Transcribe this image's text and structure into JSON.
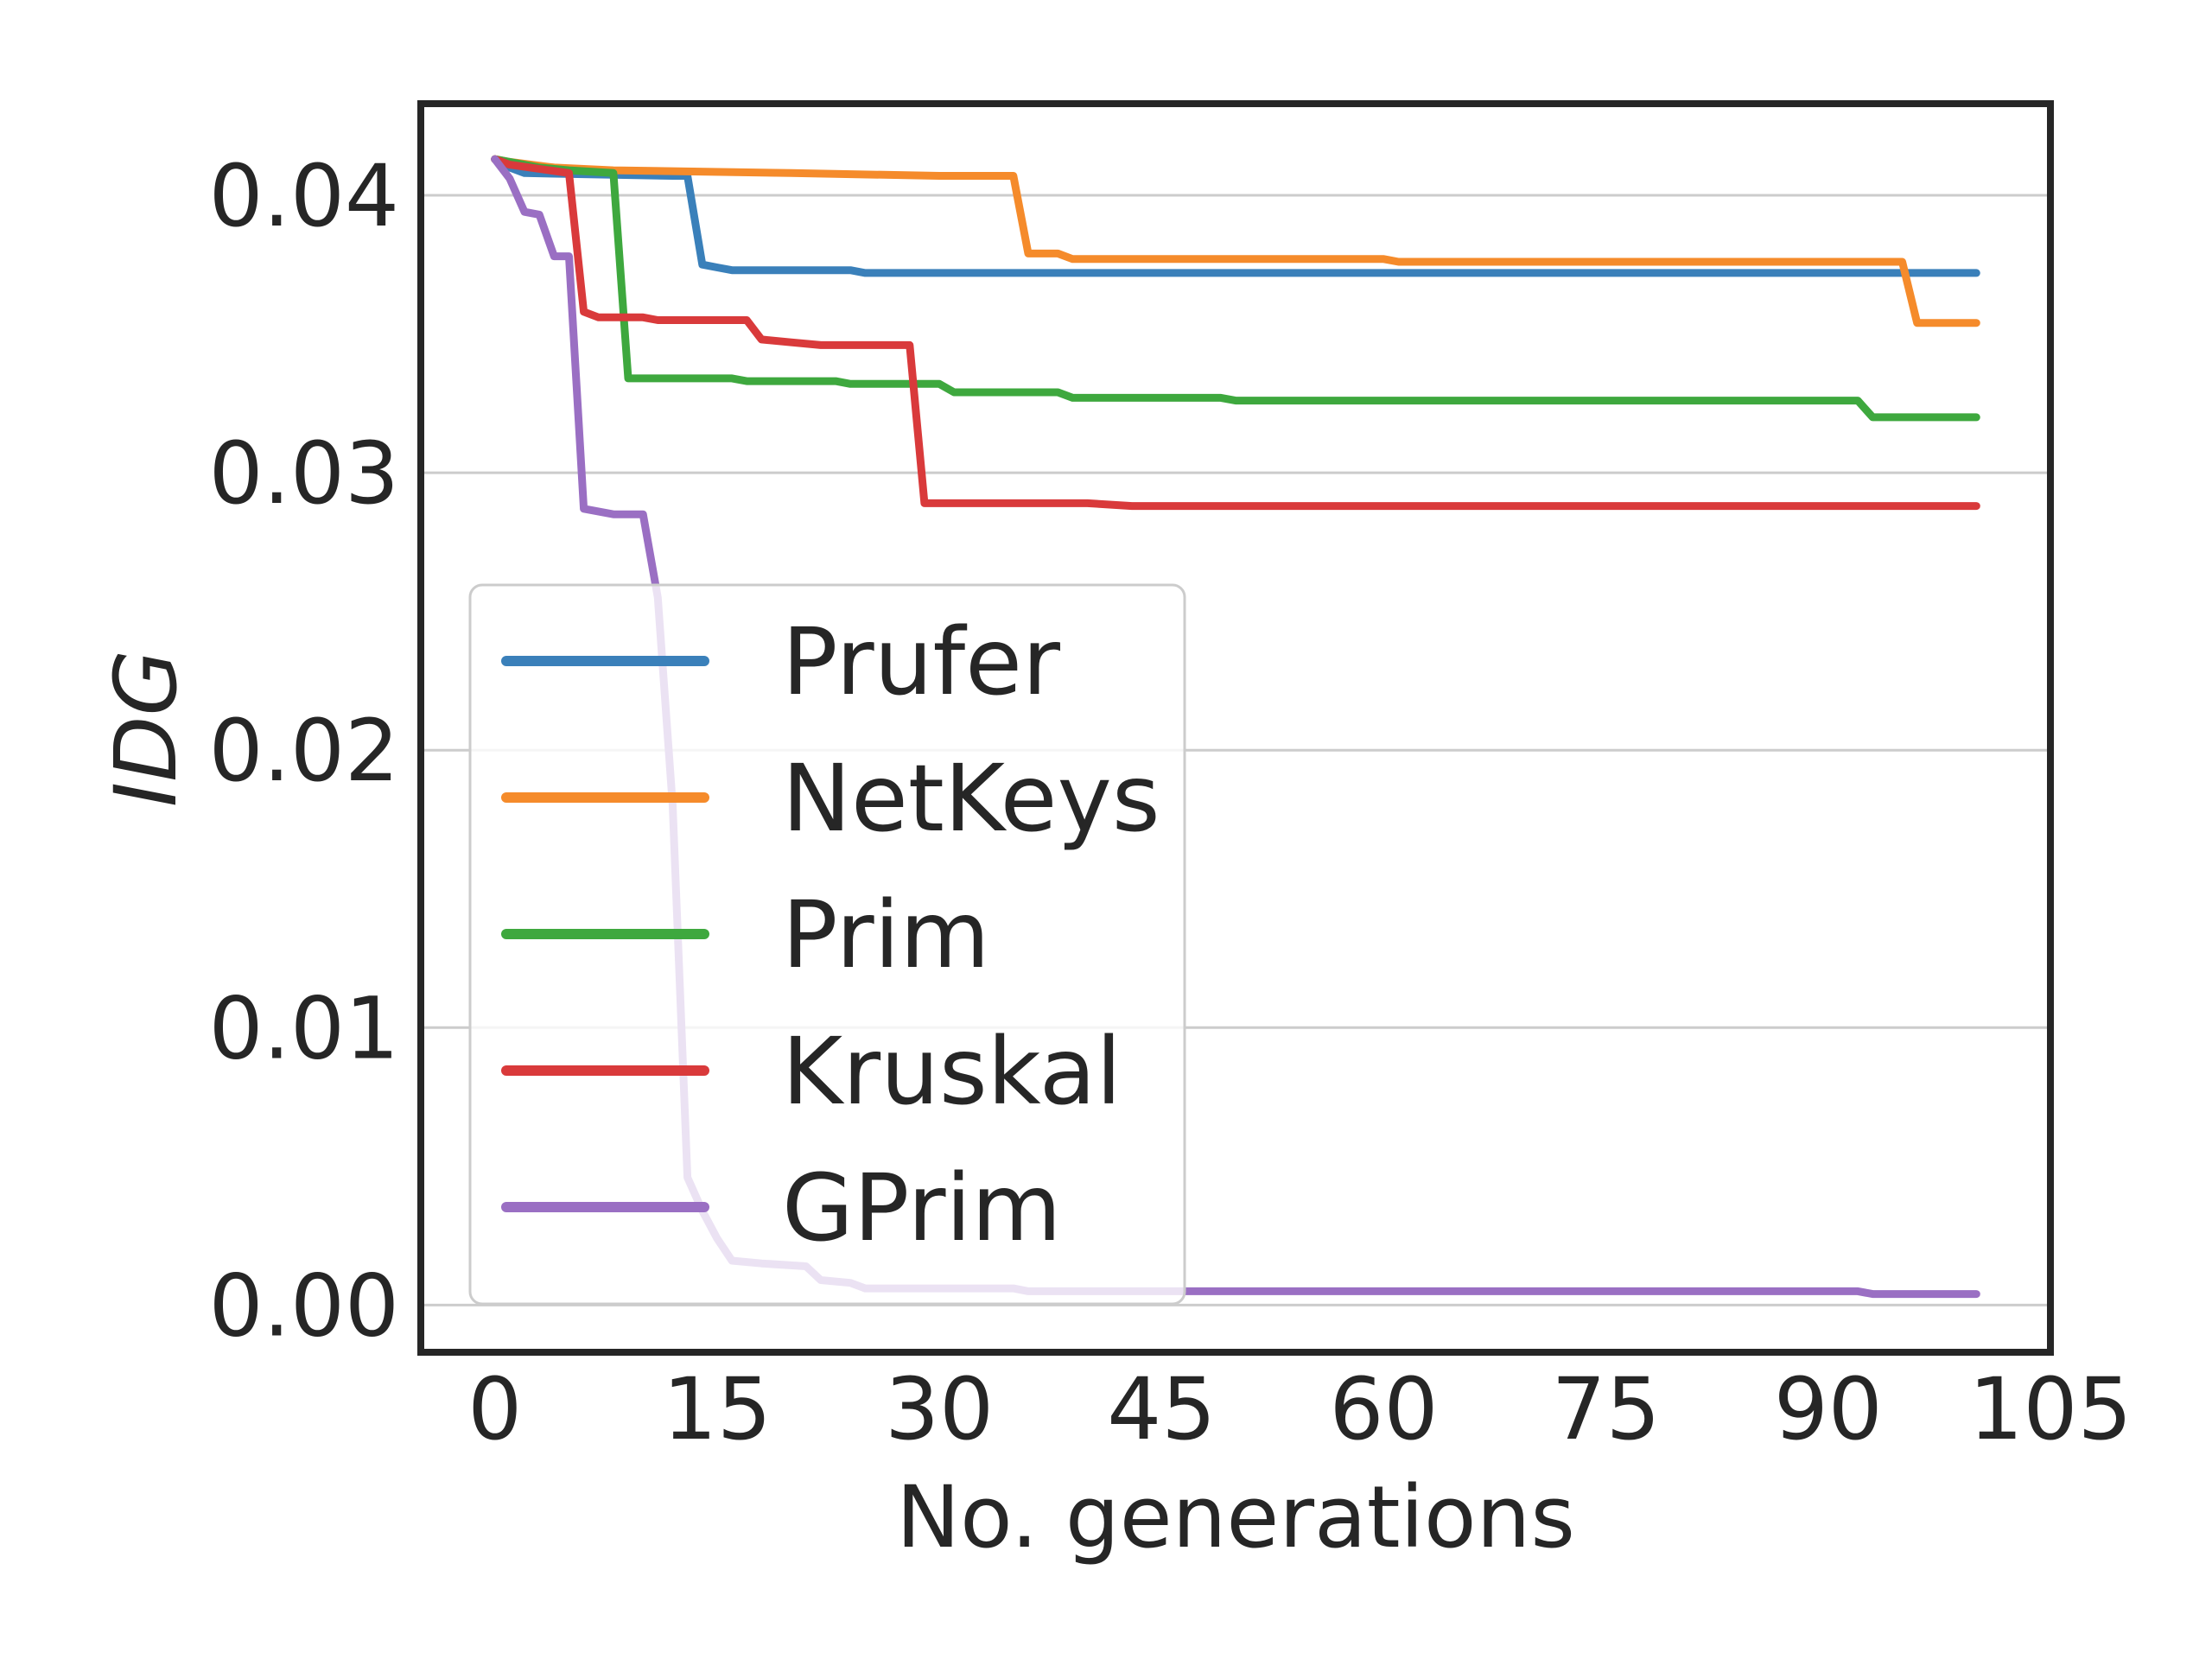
{
  "chart_data": {
    "type": "line",
    "xlabel": "No. generations",
    "ylabel": "IDG",
    "xlim": [
      -5,
      105
    ],
    "ylim": [
      -0.0017,
      0.0433
    ],
    "xticks": [
      0,
      15,
      30,
      45,
      60,
      75,
      90,
      105
    ],
    "xtick_labels": [
      "0",
      "15",
      "30",
      "45",
      "60",
      "75",
      "90",
      "105"
    ],
    "yticks": [
      0.0,
      0.01,
      0.02,
      0.03,
      0.04
    ],
    "ytick_labels": [
      "0.00",
      "0.01",
      "0.02",
      "0.03",
      "0.04"
    ],
    "grid": "horizontal",
    "legend_position": "lower-left",
    "series": [
      {
        "name": "Prufer",
        "color": "#3A80BA",
        "points": [
          [
            0,
            0.0413
          ],
          [
            1,
            0.041
          ],
          [
            2,
            0.0408
          ],
          [
            12,
            0.0407
          ],
          [
            13,
            0.0407
          ],
          [
            14,
            0.0375
          ],
          [
            15,
            0.0374
          ],
          [
            16,
            0.0373
          ],
          [
            24,
            0.0373
          ],
          [
            25,
            0.0372
          ],
          [
            100,
            0.0372
          ]
        ]
      },
      {
        "name": "NetKeys",
        "color": "#F58B2B",
        "points": [
          [
            0,
            0.0413
          ],
          [
            1,
            0.0412
          ],
          [
            4,
            0.041
          ],
          [
            8,
            0.0409
          ],
          [
            20,
            0.0408
          ],
          [
            30,
            0.0407
          ],
          [
            35,
            0.0407
          ],
          [
            36,
            0.0379
          ],
          [
            38,
            0.0379
          ],
          [
            39,
            0.0377
          ],
          [
            60,
            0.0377
          ],
          [
            61,
            0.0376
          ],
          [
            95,
            0.0376
          ],
          [
            96,
            0.0354
          ],
          [
            100,
            0.0354
          ]
        ]
      },
      {
        "name": "Prim",
        "color": "#3EA83E",
        "points": [
          [
            0,
            0.0413
          ],
          [
            1,
            0.0412
          ],
          [
            3,
            0.041
          ],
          [
            5,
            0.0409
          ],
          [
            8,
            0.0408
          ],
          [
            9,
            0.0334
          ],
          [
            16,
            0.0334
          ],
          [
            17,
            0.0333
          ],
          [
            23,
            0.0333
          ],
          [
            24,
            0.0332
          ],
          [
            30,
            0.0332
          ],
          [
            31,
            0.0329
          ],
          [
            38,
            0.0329
          ],
          [
            39,
            0.0327
          ],
          [
            49,
            0.0327
          ],
          [
            50,
            0.0326
          ],
          [
            92,
            0.0326
          ],
          [
            93,
            0.032
          ],
          [
            100,
            0.032
          ]
        ]
      },
      {
        "name": "Kruskal",
        "color": "#D93A3B",
        "points": [
          [
            0,
            0.0413
          ],
          [
            1,
            0.0411
          ],
          [
            5,
            0.0408
          ],
          [
            6,
            0.0358
          ],
          [
            7,
            0.0356
          ],
          [
            10,
            0.0356
          ],
          [
            11,
            0.0355
          ],
          [
            17,
            0.0355
          ],
          [
            18,
            0.0348
          ],
          [
            20,
            0.0347
          ],
          [
            22,
            0.0346
          ],
          [
            28,
            0.0346
          ],
          [
            29,
            0.0289
          ],
          [
            40,
            0.0289
          ],
          [
            43,
            0.0288
          ],
          [
            100,
            0.0288
          ]
        ]
      },
      {
        "name": "GPrim",
        "color": "#9A6FC3",
        "points": [
          [
            0,
            0.0413
          ],
          [
            1,
            0.0406
          ],
          [
            2,
            0.0394
          ],
          [
            3,
            0.0393
          ],
          [
            4,
            0.0378
          ],
          [
            5,
            0.0378
          ],
          [
            6,
            0.0287
          ],
          [
            8,
            0.0285
          ],
          [
            10,
            0.0285
          ],
          [
            11,
            0.0255
          ],
          [
            12,
            0.018
          ],
          [
            13,
            0.0046
          ],
          [
            14,
            0.0034
          ],
          [
            15,
            0.0024
          ],
          [
            16,
            0.0016
          ],
          [
            18,
            0.0015
          ],
          [
            21,
            0.0014
          ],
          [
            22,
            0.0009
          ],
          [
            24,
            0.0008
          ],
          [
            25,
            0.0006
          ],
          [
            35,
            0.0006
          ],
          [
            36,
            0.0005
          ],
          [
            92,
            0.0005
          ],
          [
            93,
            0.0004
          ],
          [
            100,
            0.0004
          ]
        ]
      }
    ]
  }
}
